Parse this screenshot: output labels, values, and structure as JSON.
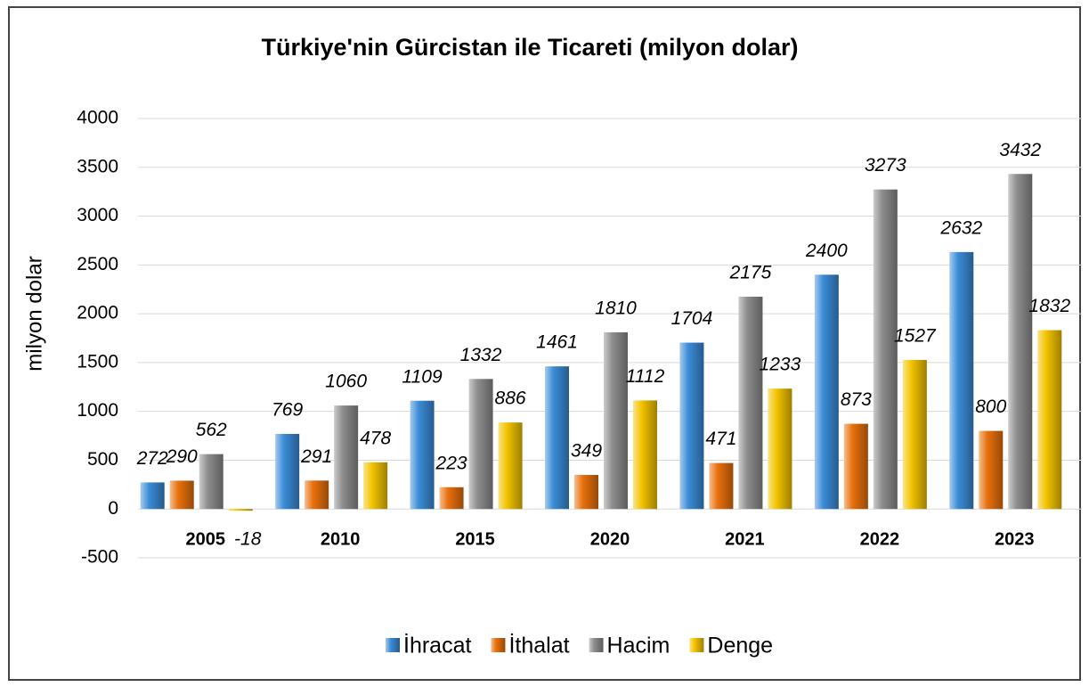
{
  "chart_data": {
    "type": "bar",
    "title": "Türkiye'nin Gürcistan ile Ticareti (milyon dolar)",
    "y_label": "milyon dolar",
    "categories": [
      "2005",
      "2010",
      "2015",
      "2020",
      "2021",
      "2022",
      "2023"
    ],
    "series": [
      {
        "name": "İhracat",
        "color": "#3b8cd8",
        "values": [
          272,
          769,
          1109,
          1461,
          1704,
          2400,
          2632
        ]
      },
      {
        "name": "İthalat",
        "color": "#e8700c",
        "values": [
          290,
          291,
          223,
          349,
          471,
          873,
          800
        ]
      },
      {
        "name": "Hacim",
        "color": "#8e8e8e",
        "values": [
          562,
          1060,
          1332,
          1810,
          2175,
          3273,
          3432
        ]
      },
      {
        "name": "Denge",
        "color": "#f3c400",
        "values": [
          -18,
          478,
          886,
          1112,
          1233,
          1527,
          1832
        ]
      }
    ],
    "ylim": [
      -500,
      4000
    ],
    "yticks": [
      -500,
      0,
      500,
      1000,
      1500,
      2000,
      2500,
      3000,
      3500,
      4000
    ],
    "grid": true,
    "legend": "bottom"
  }
}
